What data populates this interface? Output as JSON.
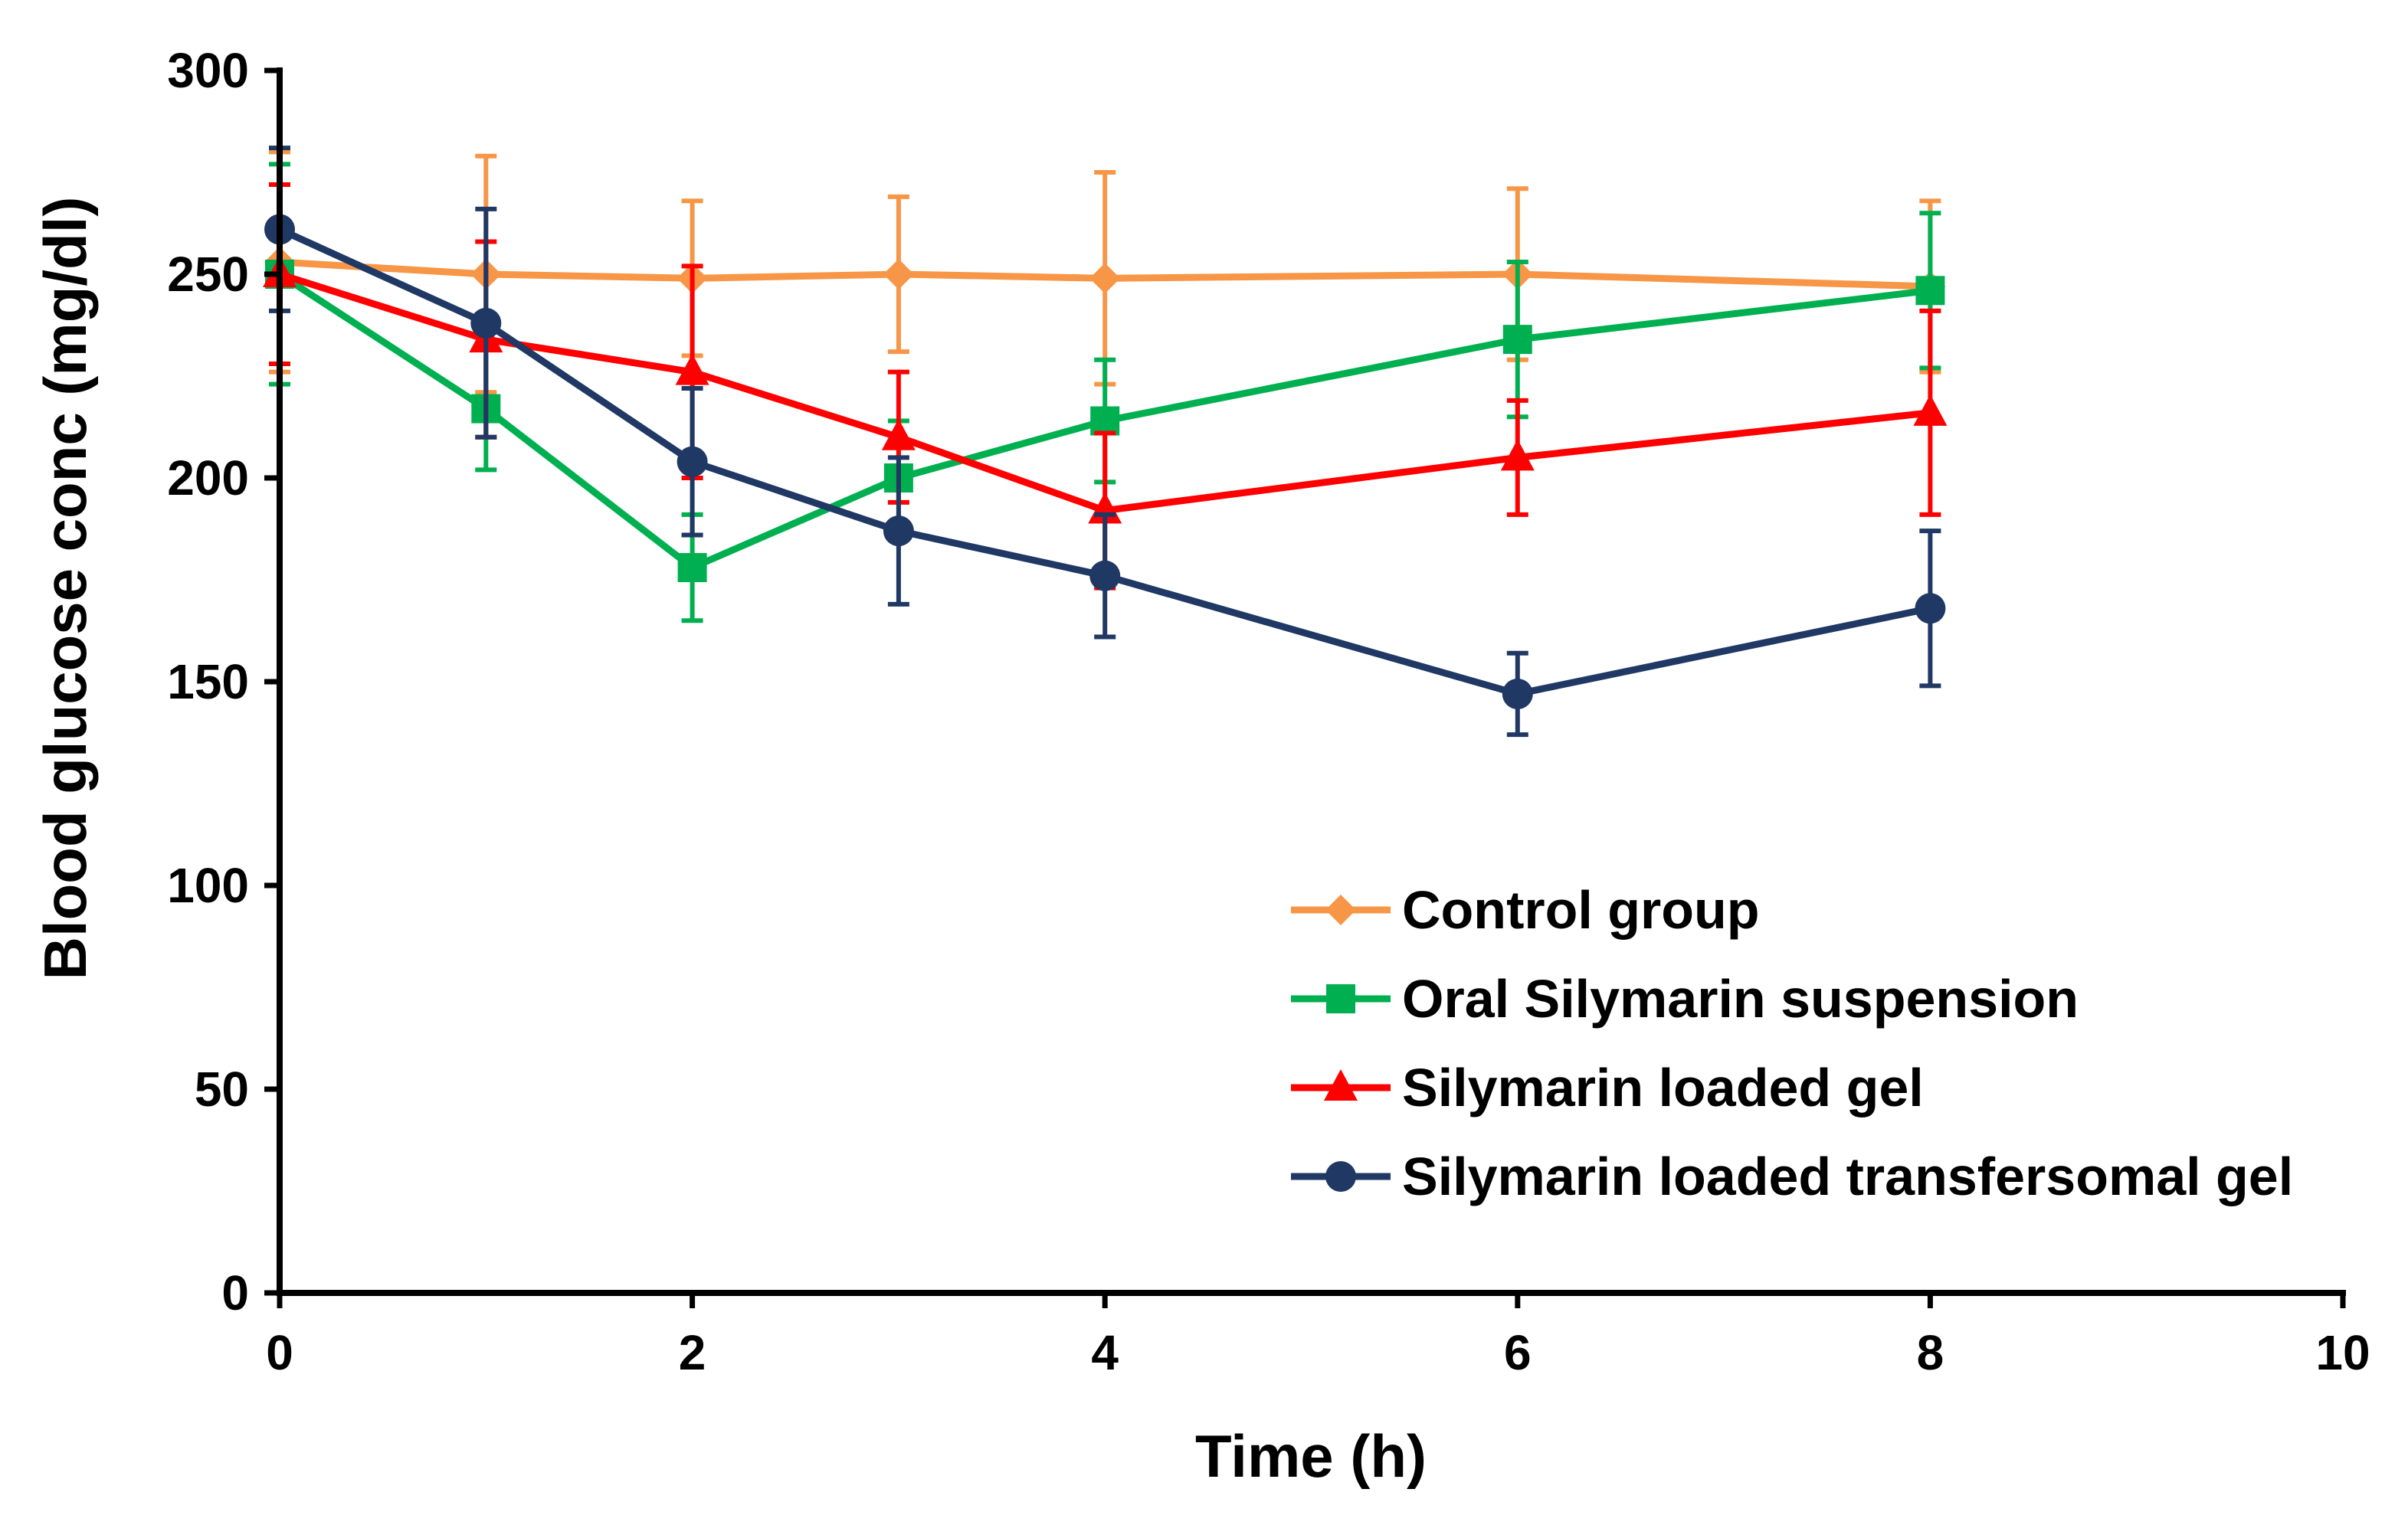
{
  "chart_data": {
    "type": "line",
    "title": "",
    "xlabel": "Time (h)",
    "ylabel": "Blood glucose conc (mg/dl)",
    "xlim": [
      0,
      10
    ],
    "ylim": [
      0,
      300
    ],
    "xticks": [
      0,
      2,
      4,
      6,
      8,
      10
    ],
    "yticks": [
      0,
      50,
      100,
      150,
      200,
      250,
      300
    ],
    "grid": false,
    "legend_position": "bottom-right",
    "x": [
      0,
      1,
      2,
      3,
      4,
      6,
      8
    ],
    "series": [
      {
        "name": "Control group",
        "color": "#F79646",
        "marker": "diamond",
        "values": [
          253,
          250,
          249,
          250,
          249,
          250,
          247
        ],
        "errors": [
          27,
          29,
          19,
          19,
          26,
          21,
          21
        ]
      },
      {
        "name": "Oral Silymarin suspension",
        "color": "#00B050",
        "marker": "square",
        "values": [
          250,
          217,
          178,
          200,
          214,
          234,
          246
        ],
        "errors": [
          27,
          15,
          13,
          14,
          15,
          19,
          19
        ]
      },
      {
        "name": "Silymarin loaded gel",
        "color": "#FF0000",
        "marker": "triangle",
        "values": [
          250,
          234,
          226,
          210,
          192,
          205,
          216
        ],
        "errors": [
          22,
          24,
          26,
          16,
          19,
          14,
          25
        ]
      },
      {
        "name": "Silymarin loaded transfersomal gel",
        "color": "#1F3864",
        "marker": "circle",
        "values": [
          261,
          238,
          204,
          187,
          176,
          147,
          168
        ],
        "errors": [
          20,
          28,
          18,
          18,
          15,
          10,
          19
        ]
      }
    ]
  }
}
